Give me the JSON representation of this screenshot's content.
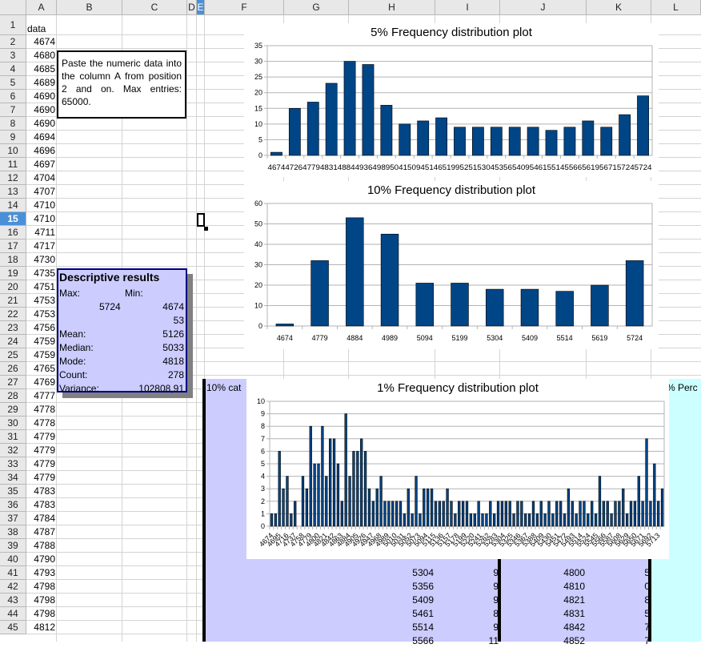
{
  "columns": [
    "A",
    "B",
    "C",
    "D",
    "E",
    "F",
    "G",
    "H",
    "I",
    "J",
    "K",
    "L"
  ],
  "rows": [
    "1",
    "2",
    "3",
    "4",
    "5",
    "6",
    "7",
    "8",
    "9",
    "10",
    "11",
    "12",
    "13",
    "14",
    "15",
    "16",
    "17",
    "18",
    "19",
    "20",
    "21",
    "22",
    "23",
    "24",
    "25",
    "26",
    "27",
    "28",
    "29",
    "30",
    "31",
    "32",
    "33",
    "34",
    "35",
    "36",
    "37",
    "38",
    "39",
    "40",
    "41",
    "42",
    "43",
    "44",
    "45"
  ],
  "selected_row": "15",
  "column_a": [
    "data",
    "4674",
    "4680",
    "4685",
    "4689",
    "4690",
    "4690",
    "4690",
    "4694",
    "4696",
    "4697",
    "4704",
    "4707",
    "4710",
    "4710",
    "4711",
    "4717",
    "4730",
    "4735",
    "4751",
    "4753",
    "4753",
    "4756",
    "4759",
    "4759",
    "4765",
    "4769",
    "4777",
    "4778",
    "4778",
    "4779",
    "4779",
    "4779",
    "4779",
    "4783",
    "4783",
    "4784",
    "4787",
    "4788",
    "4790",
    "4793",
    "4798",
    "4798",
    "4798",
    "4812"
  ],
  "note_text": "Paste the numeric data into the column A from position 2 and on. Max entries: 65000.",
  "descriptive": {
    "title": "Descriptive results",
    "max_label": "Max:",
    "min_label": "Min:",
    "max_value": "5724",
    "min_value": "4674",
    "range_value": "53",
    "mean_label": "Mean:",
    "mean_value": "5126",
    "median_label": "Median:",
    "median_value": "5033",
    "mode_label": "Mode:",
    "mode_value": "4818",
    "count_label": "Count:",
    "count_value": "278",
    "variance_label": "Variance:",
    "variance_value": "102808,91"
  },
  "table_labels": {
    "left_header": "10% cat",
    "right_header": "% Perc"
  },
  "table_h": [
    "5304",
    "5356",
    "5409",
    "5461",
    "5514",
    "5566"
  ],
  "table_i": [
    "9",
    "9",
    "9",
    "8",
    "9",
    "11"
  ],
  "table_j": [
    "4800",
    "4810",
    "4821",
    "4831",
    "4842",
    "4852"
  ],
  "table_k": [
    "5",
    "0",
    "8",
    "5",
    "7",
    "7"
  ],
  "chart_data": [
    {
      "type": "bar",
      "title": "5% Frequency distribution plot",
      "categories": [
        "4674",
        "4726",
        "4779",
        "4831",
        "4884",
        "4936",
        "4989",
        "5041",
        "5094",
        "5146",
        "5199",
        "5251",
        "5304",
        "5356",
        "5409",
        "5461",
        "5514",
        "5566",
        "5619",
        "5671",
        "5724"
      ],
      "tick_text": "4674472647794831488449364989504150945146519952515304535654095461551455665619567157245724",
      "values": [
        1,
        15,
        17,
        23,
        30,
        29,
        16,
        10,
        11,
        12,
        9,
        9,
        9,
        9,
        9,
        8,
        9,
        11,
        9,
        13,
        19
      ],
      "ylim": [
        0,
        35
      ],
      "yticks": [
        0,
        5,
        10,
        15,
        20,
        25,
        30,
        35
      ],
      "grid": true,
      "color": "#004586"
    },
    {
      "type": "bar",
      "title": "10% Frequency distribution plot",
      "categories": [
        "4674",
        "4779",
        "4884",
        "4989",
        "5094",
        "5199",
        "5304",
        "5409",
        "5514",
        "5619",
        "5724"
      ],
      "values": [
        1,
        32,
        53,
        45,
        21,
        21,
        18,
        18,
        17,
        20,
        32
      ],
      "ylim": [
        0,
        60
      ],
      "yticks": [
        0,
        10,
        20,
        30,
        40,
        50,
        60
      ],
      "grid": true,
      "color": "#004586"
    },
    {
      "type": "bar",
      "title": "1%  Frequency distribution plot",
      "tick_labels": [
        "4674",
        "4695",
        "4716",
        "4737",
        "4758",
        "4779",
        "4800",
        "4821",
        "4842",
        "4863",
        "4884",
        "4905",
        "4926",
        "4947",
        "4968",
        "4989",
        "5010",
        "5031",
        "5052",
        "5073",
        "5094",
        "5115",
        "5136",
        "5157",
        "5178",
        "5199",
        "5220",
        "5241",
        "5262",
        "5283",
        "5304",
        "5325",
        "5346",
        "5367",
        "5388",
        "5409",
        "5430",
        "5451",
        "5472",
        "5493",
        "5514",
        "5524",
        "5545",
        "5566",
        "5587",
        "5608",
        "5629",
        "5650",
        "5671",
        "5692",
        "5713"
      ],
      "values": [
        1,
        1,
        6,
        3,
        4,
        1,
        2,
        0,
        4,
        3,
        8,
        5,
        5,
        8,
        4,
        7,
        7,
        5,
        2,
        9,
        4,
        6,
        6,
        7,
        6,
        3,
        2,
        3,
        4,
        2,
        2,
        2,
        2,
        2,
        1,
        3,
        1,
        4,
        1,
        3,
        3,
        3,
        2,
        2,
        2,
        3,
        2,
        1,
        2,
        2,
        2,
        1,
        1,
        2,
        1,
        1,
        2,
        1,
        2,
        2,
        2,
        2,
        1,
        2,
        2,
        1,
        1,
        2,
        1,
        2,
        1,
        2,
        1,
        2,
        2,
        1,
        3,
        2,
        1,
        2,
        2,
        1,
        2,
        1,
        4,
        2,
        2,
        1,
        2,
        2,
        3,
        1,
        2,
        2,
        4,
        2,
        7,
        2,
        5,
        2,
        3
      ],
      "ylim": [
        0,
        10
      ],
      "yticks": [
        0,
        1,
        2,
        3,
        4,
        5,
        6,
        7,
        8,
        9,
        10
      ],
      "grid": true,
      "color": "#004586"
    }
  ]
}
